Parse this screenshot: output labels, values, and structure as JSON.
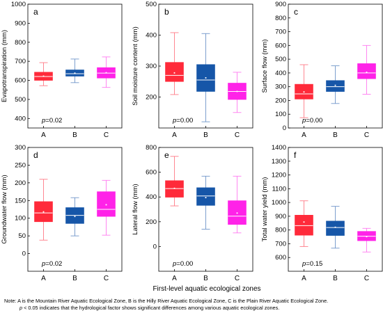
{
  "figure": {
    "xlabel_shared": "First-level aquatic ecological zones",
    "note_line1": "Note: A is the Mountain River Aquatic Ecological Zone, B is the Hilly River Aquatic Ecological Zone, C is the Plain River Aquatic Ecological Zone.",
    "note_line2_p": "p",
    "note_line2_rest": " < 0.05 indicates that the hydrological factor shows significant differences among various aquatic ecological zones.",
    "group_colors": {
      "A": "#ff2a3a",
      "B": "#1656a8",
      "C": "#ff22e8"
    },
    "whisker_colors": {
      "A": "#ff7a86",
      "B": "#6f95c9",
      "C": "#ff7af0"
    }
  },
  "chart_data": [
    {
      "panel": "a",
      "type": "box",
      "ylabel": "Evapotranspiration (mm)",
      "categories": [
        "A",
        "B",
        "C"
      ],
      "ylim": [
        350,
        1000
      ],
      "yticks": [
        400,
        500,
        600,
        700,
        800,
        900,
        1000
      ],
      "p_label": "p",
      "p_value": "=0.02",
      "boxes": [
        {
          "min": 572,
          "q1": 600,
          "median": 620,
          "mean": 622,
          "q3": 643,
          "max": 693
        },
        {
          "min": 588,
          "q1": 622,
          "median": 635,
          "mean": 638,
          "q3": 655,
          "max": 712
        },
        {
          "min": 563,
          "q1": 612,
          "median": 638,
          "mean": 640,
          "q3": 667,
          "max": 723
        }
      ]
    },
    {
      "panel": "b",
      "type": "box",
      "ylabel": "Soil moisture content (mm)",
      "categories": [
        "A",
        "B",
        "C"
      ],
      "ylim": [
        100,
        500
      ],
      "yticks": [
        200,
        300,
        400,
        500
      ],
      "p_label": "p",
      "p_value": "=0.00",
      "boxes": [
        {
          "min": 208,
          "q1": 250,
          "median": 270,
          "mean": 278,
          "q3": 312,
          "max": 408
        },
        {
          "min": 120,
          "q1": 218,
          "median": 255,
          "mean": 262,
          "q3": 305,
          "max": 405
        },
        {
          "min": 150,
          "q1": 192,
          "median": 218,
          "mean": 218,
          "q3": 245,
          "max": 280
        }
      ]
    },
    {
      "panel": "c",
      "type": "box",
      "ylabel": "Surface flow (mm)",
      "categories": [
        "A",
        "B",
        "C"
      ],
      "ylim": [
        0,
        900
      ],
      "yticks": [
        0,
        100,
        200,
        300,
        400,
        500,
        600,
        700,
        800,
        900
      ],
      "p_label": "p",
      "p_value": "=0.00",
      "boxes": [
        {
          "min": 75,
          "q1": 210,
          "median": 248,
          "mean": 262,
          "q3": 318,
          "max": 460
        },
        {
          "min": 178,
          "q1": 265,
          "median": 300,
          "mean": 310,
          "q3": 345,
          "max": 452
        },
        {
          "min": 245,
          "q1": 358,
          "median": 400,
          "mean": 405,
          "q3": 468,
          "max": 600
        }
      ]
    },
    {
      "panel": "d",
      "type": "box",
      "ylabel": "Groundwater flow (mm)",
      "categories": [
        "A",
        "B",
        "C"
      ],
      "ylim": [
        -50,
        300
      ],
      "yticks": [
        0,
        50,
        100,
        150,
        200,
        250,
        300
      ],
      "p_label": "p",
      "p_value": "=0.02",
      "boxes": [
        {
          "min": 38,
          "q1": 90,
          "median": 115,
          "mean": 118,
          "q3": 147,
          "max": 210
        },
        {
          "min": 50,
          "q1": 85,
          "median": 108,
          "mean": 105,
          "q3": 130,
          "max": 158
        },
        {
          "min": 52,
          "q1": 105,
          "median": 125,
          "mean": 138,
          "q3": 175,
          "max": 207
        }
      ]
    },
    {
      "panel": "e",
      "type": "box",
      "ylabel": "Lateral flow (mm)",
      "categories": [
        "A",
        "B",
        "C"
      ],
      "ylim": [
        -200,
        800
      ],
      "yticks": [
        0,
        200,
        400,
        600,
        800
      ],
      "p_label": "p",
      "p_value": "=0.00",
      "boxes": [
        {
          "min": 328,
          "q1": 398,
          "median": 468,
          "mean": 470,
          "q3": 532,
          "max": 728
        },
        {
          "min": 140,
          "q1": 332,
          "median": 408,
          "mean": 395,
          "q3": 475,
          "max": 568
        },
        {
          "min": 110,
          "q1": 178,
          "median": 245,
          "mean": 270,
          "q3": 370,
          "max": 568
        }
      ]
    },
    {
      "panel": "f",
      "type": "box",
      "ylabel": "Total water yield (mm)",
      "categories": [
        "A",
        "B",
        "C"
      ],
      "ylim": [
        500,
        1400
      ],
      "yticks": [
        600,
        700,
        800,
        900,
        1000,
        1100,
        1200,
        1300,
        1400
      ],
      "p_label": "p",
      "p_value": "=0.15",
      "boxes": [
        {
          "min": 680,
          "q1": 762,
          "median": 832,
          "mean": 858,
          "q3": 908,
          "max": 1012
        },
        {
          "min": 668,
          "q1": 760,
          "median": 818,
          "mean": 820,
          "q3": 865,
          "max": 972
        },
        {
          "min": 640,
          "q1": 722,
          "median": 755,
          "mean": 752,
          "q3": 790,
          "max": 812
        }
      ]
    }
  ]
}
